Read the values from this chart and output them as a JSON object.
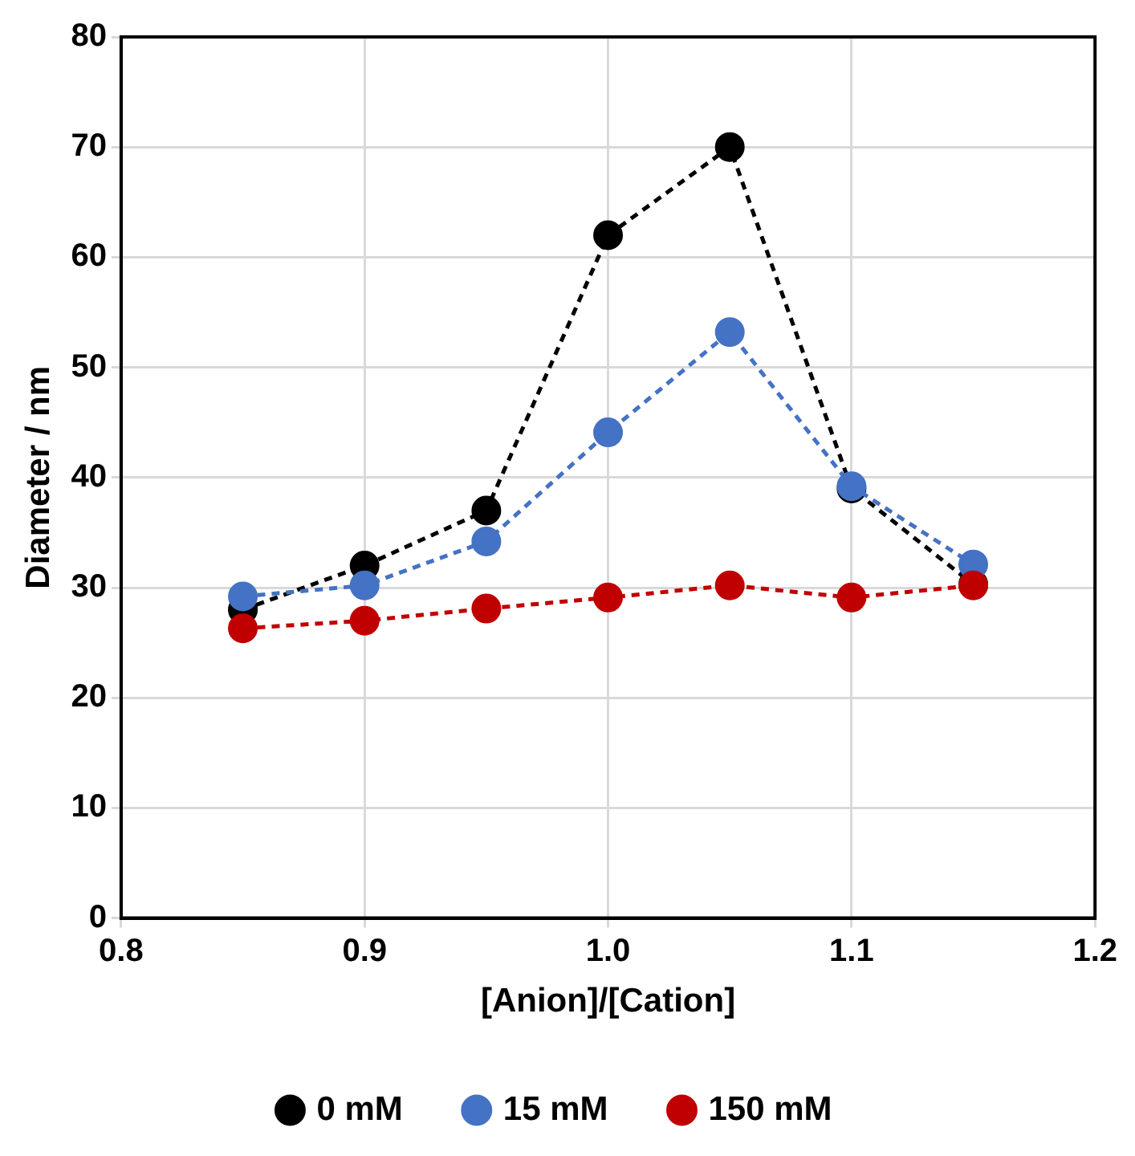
{
  "chart_data": {
    "type": "line",
    "xlabel": "[Anion]/[Cation]",
    "ylabel": "Diameter / nm",
    "x": [
      0.85,
      0.9,
      0.95,
      1.0,
      1.05,
      1.1,
      1.15
    ],
    "series": [
      {
        "name": "0 mM",
        "color": "#000000",
        "values": [
          28,
          32,
          37,
          62,
          70,
          39,
          30.3
        ]
      },
      {
        "name": "15 mM",
        "color": "#4472c4",
        "values": [
          29.2,
          30.2,
          34.2,
          44.1,
          53.2,
          39.2,
          32.1
        ]
      },
      {
        "name": "150 mM",
        "color": "#c00000",
        "values": [
          26.3,
          27,
          28.1,
          29.1,
          30.2,
          29.1,
          30.2
        ]
      }
    ],
    "xlim": [
      0.8,
      1.2
    ],
    "xticks": [
      0.8,
      0.9,
      {
        "value": 1,
        "label": "1.0"
      },
      1.1,
      1.2
    ],
    "ylim": [
      0,
      80
    ],
    "yticks": [
      0,
      10,
      20,
      30,
      40,
      50,
      60,
      70,
      80
    ],
    "grid": true,
    "legend": "bottom",
    "marker": "circle",
    "line_style": "dashed"
  }
}
